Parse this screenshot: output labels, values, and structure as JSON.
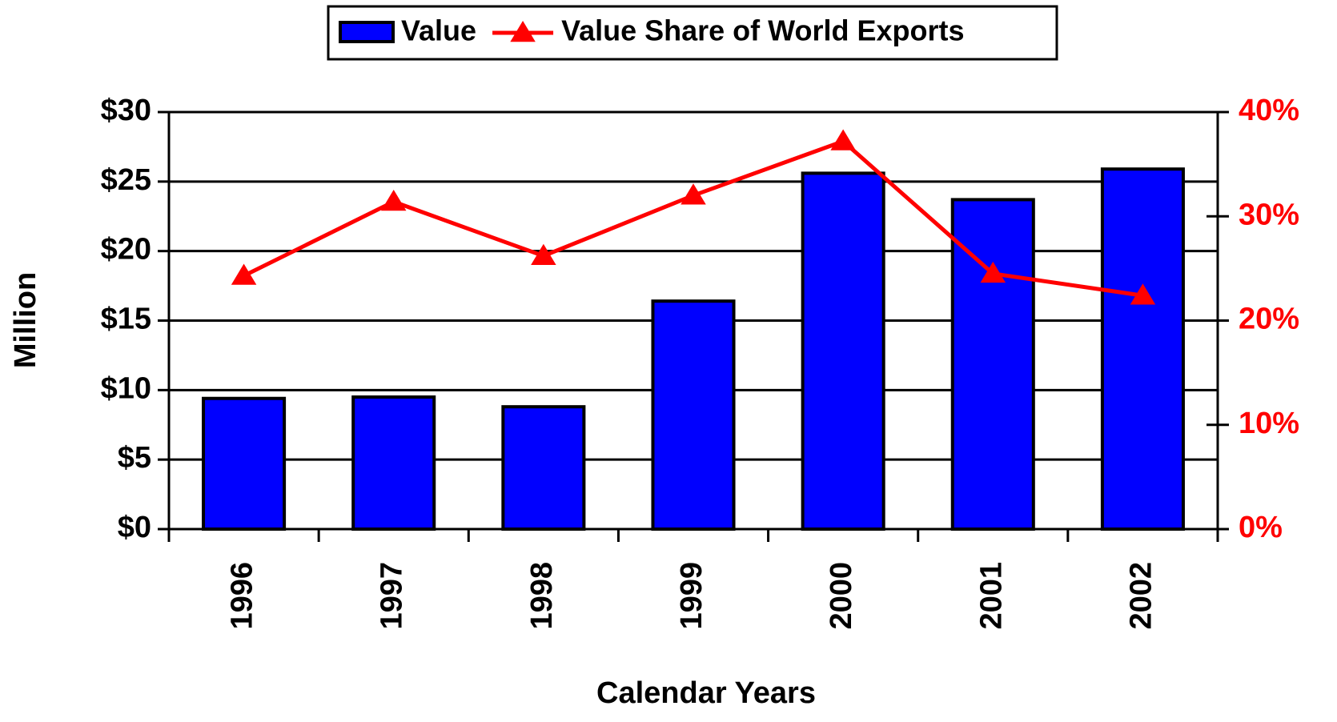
{
  "chart_data": {
    "type": "bar_line",
    "categories": [
      "1996",
      "1997",
      "1998",
      "1999",
      "2000",
      "2001",
      "2002"
    ],
    "series": [
      {
        "name": "Value",
        "type": "bar",
        "color": "#0000ff",
        "values": [
          9.4,
          9.5,
          8.8,
          16.4,
          25.6,
          23.7,
          25.9
        ]
      },
      {
        "name": "Value Share of World Exports",
        "type": "line",
        "axis": "y2",
        "color": "#ff0000",
        "values": [
          24.3,
          31.4,
          26.2,
          32.0,
          37.2,
          24.5,
          22.4
        ]
      }
    ],
    "ylabel": "Million",
    "xlabel": "Calendar Years",
    "ylim": [
      0,
      30
    ],
    "yticks": [
      {
        "value": 0,
        "label": "$0"
      },
      {
        "value": 5,
        "label": "$5"
      },
      {
        "value": 10,
        "label": "$10"
      },
      {
        "value": 15,
        "label": "$15"
      },
      {
        "value": 20,
        "label": "$20"
      },
      {
        "value": 25,
        "label": "$25"
      },
      {
        "value": 30,
        "label": "$30"
      }
    ],
    "y2lim": [
      0,
      40
    ],
    "y2ticks": [
      {
        "value": 0,
        "label": "0%"
      },
      {
        "value": 10,
        "label": "10%"
      },
      {
        "value": 20,
        "label": "20%"
      },
      {
        "value": 30,
        "label": "30%"
      },
      {
        "value": 40,
        "label": "40%"
      }
    ],
    "grid": true,
    "legend": "top"
  }
}
